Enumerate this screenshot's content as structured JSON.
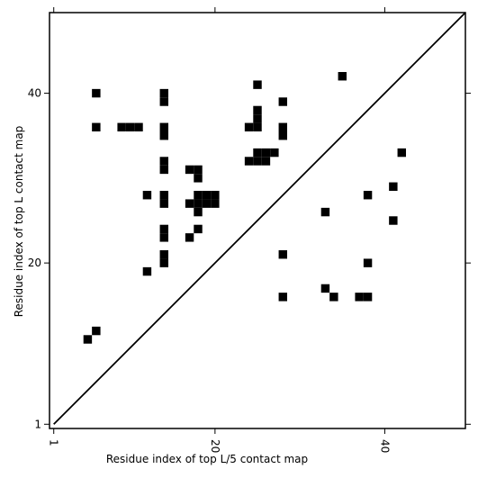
{
  "chart_data": {
    "type": "heatmap",
    "title": "",
    "xlabel": "Residue index of top L/5 contact map",
    "ylabel": "Residue index of top L contact map",
    "xlim": [
      0.5,
      49.5
    ],
    "ylim": [
      0.5,
      49.5
    ],
    "xticks": [
      1,
      20,
      40
    ],
    "yticks": [
      1,
      20,
      40
    ],
    "diagonal": true,
    "grid": false,
    "upper_triangle_contacts": [
      [
        35,
        42
      ],
      [
        42,
        33
      ],
      [
        38,
        28
      ],
      [
        41,
        29
      ],
      [
        41,
        25
      ],
      [
        38,
        20
      ],
      [
        38,
        16
      ],
      [
        37,
        16
      ],
      [
        34,
        16
      ],
      [
        33,
        17
      ],
      [
        28,
        16
      ],
      [
        28,
        21
      ],
      [
        33,
        26
      ],
      [
        25,
        41
      ],
      [
        25,
        38
      ],
      [
        25,
        37
      ],
      [
        24,
        36
      ],
      [
        25,
        36
      ],
      [
        28,
        36
      ],
      [
        28,
        35
      ],
      [
        28,
        39
      ],
      [
        25,
        33
      ],
      [
        26,
        33
      ],
      [
        27,
        33
      ],
      [
        24,
        32
      ],
      [
        25,
        32
      ],
      [
        26,
        32
      ]
    ],
    "lower_triangle_contacts": [
      [
        6,
        40
      ],
      [
        6,
        36
      ],
      [
        9,
        36
      ],
      [
        10,
        36
      ],
      [
        11,
        36
      ],
      [
        12,
        28
      ],
      [
        12,
        19
      ],
      [
        14,
        40
      ],
      [
        14,
        39
      ],
      [
        14,
        36
      ],
      [
        14,
        35
      ],
      [
        14,
        32
      ],
      [
        14,
        31
      ],
      [
        14,
        28
      ],
      [
        14,
        27
      ],
      [
        14,
        24
      ],
      [
        14,
        23
      ],
      [
        14,
        21
      ],
      [
        14,
        20
      ],
      [
        17,
        31
      ],
      [
        18,
        31
      ],
      [
        18,
        30
      ],
      [
        18,
        28
      ],
      [
        19,
        28
      ],
      [
        20,
        28
      ],
      [
        17,
        27
      ],
      [
        18,
        27
      ],
      [
        19,
        27
      ],
      [
        20,
        27
      ],
      [
        18,
        26
      ],
      [
        18,
        24
      ],
      [
        17,
        23
      ],
      [
        6,
        12
      ],
      [
        5,
        11
      ]
    ]
  }
}
